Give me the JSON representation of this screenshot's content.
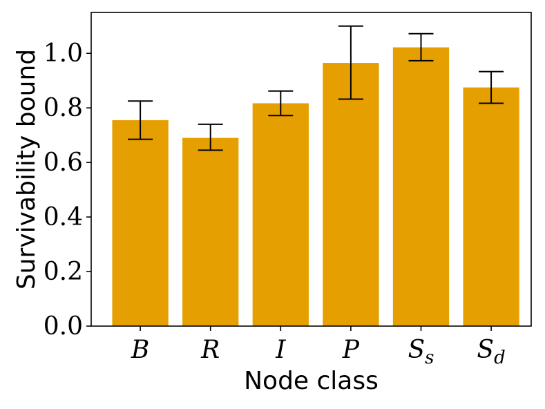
{
  "chart_data": {
    "type": "bar",
    "title": "",
    "xlabel": "Node class",
    "ylabel": "Survivability bound",
    "categories": [
      {
        "base": "B",
        "sub": ""
      },
      {
        "base": "R",
        "sub": ""
      },
      {
        "base": "I",
        "sub": ""
      },
      {
        "base": "P",
        "sub": ""
      },
      {
        "base": "S",
        "sub": "s"
      },
      {
        "base": "S",
        "sub": "d"
      }
    ],
    "values": [
      0.755,
      0.69,
      0.817,
      0.965,
      1.022,
      0.875
    ],
    "error_low": [
      0.685,
      0.645,
      0.772,
      0.832,
      0.973,
      0.817
    ],
    "error_high": [
      0.825,
      0.74,
      0.862,
      1.1,
      1.072,
      0.933
    ],
    "ylim": [
      0,
      1.15
    ],
    "yticks": [
      0.0,
      0.2,
      0.4,
      0.6,
      0.8,
      1.0
    ],
    "ytick_labels": [
      "0.0",
      "0.2",
      "0.4",
      "0.6",
      "0.8",
      "1.0"
    ],
    "bar_color": "#E69F00",
    "error_color": "#000000",
    "grid": false,
    "legend": "none"
  }
}
